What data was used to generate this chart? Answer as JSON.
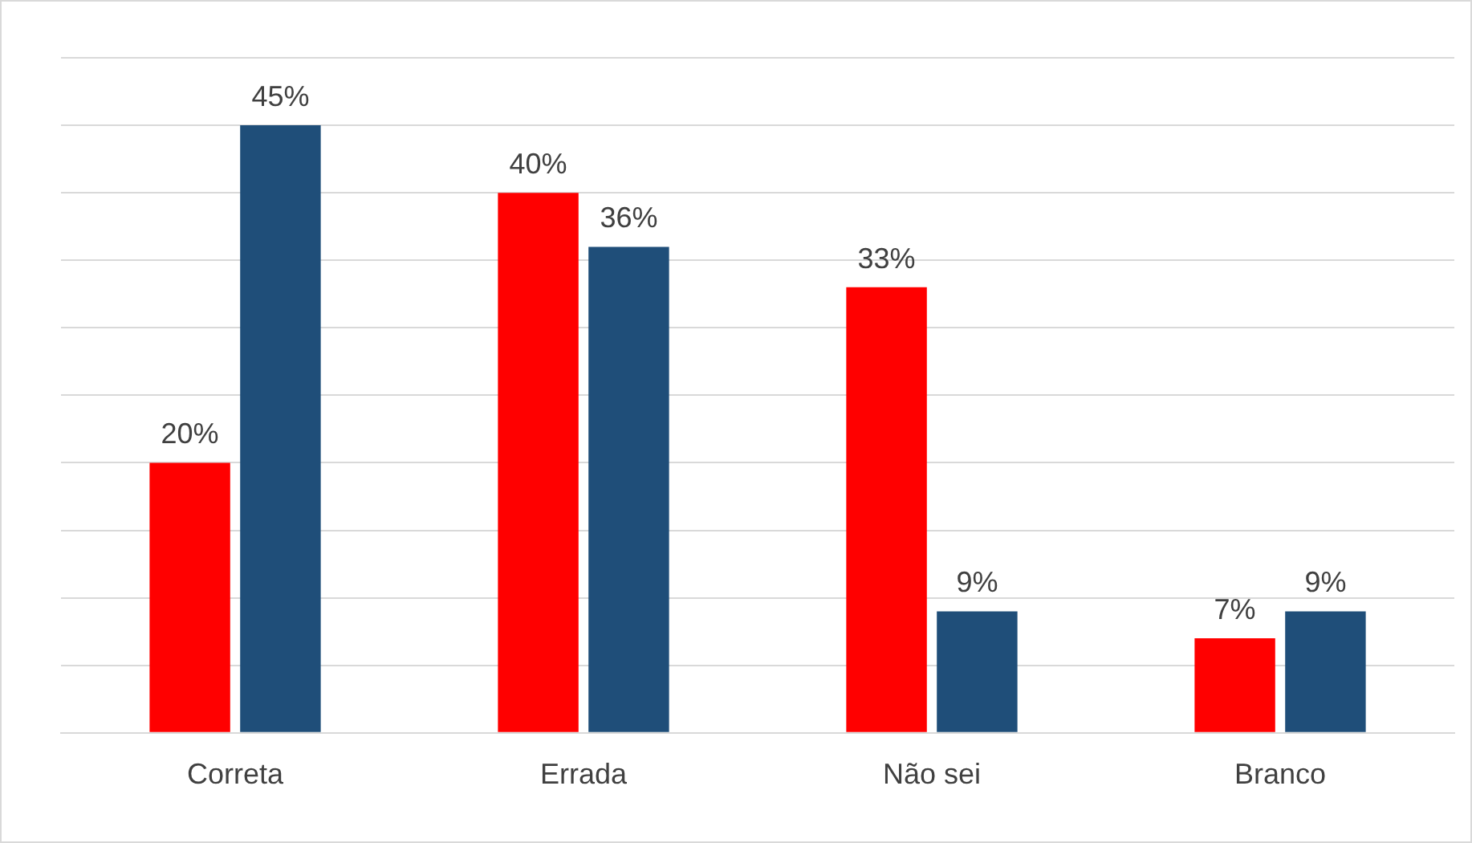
{
  "chart_data": {
    "type": "bar",
    "categories": [
      "Correta",
      "Errada",
      "Não sei",
      "Branco"
    ],
    "series": [
      {
        "color": "#ff0000",
        "values": [
          20,
          40,
          33,
          7
        ],
        "value_labels": [
          "20%",
          "40%",
          "33%",
          "7%"
        ]
      },
      {
        "color": "#1f4e79",
        "values": [
          45,
          36,
          9,
          9
        ],
        "value_labels": [
          "45%",
          "36%",
          "9%",
          "9%"
        ]
      }
    ],
    "ylim": [
      0,
      50
    ],
    "yticks": [
      0,
      5,
      10,
      15,
      20,
      25,
      30,
      35,
      40,
      45,
      50
    ],
    "grid": "y",
    "tick_labels": "x"
  }
}
